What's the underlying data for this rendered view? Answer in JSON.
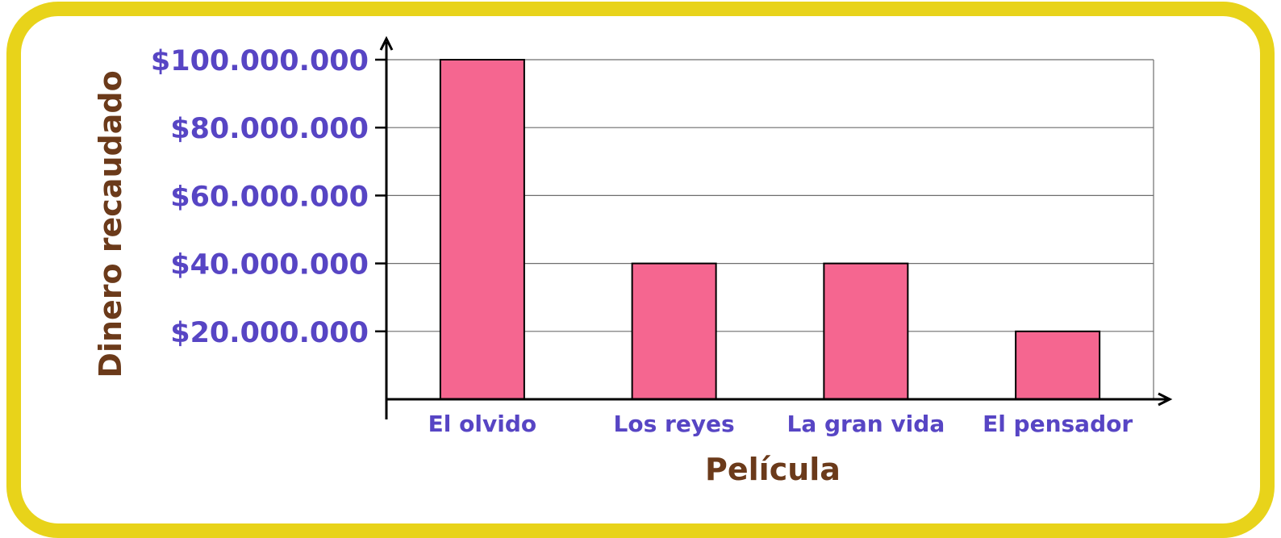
{
  "chart_data": {
    "type": "bar",
    "categories": [
      "El olvido",
      "Los reyes",
      "La gran vida",
      "El pensador"
    ],
    "values": [
      100000000,
      40000000,
      40000000,
      20000000
    ],
    "ylim": [
      0,
      100000000
    ],
    "yticks": [
      20000000,
      40000000,
      60000000,
      80000000,
      100000000
    ],
    "ytick_labels": [
      "$20.000.000",
      "$40.000.000",
      "$60.000.000",
      "$80.000.000",
      "$100.000.000"
    ],
    "xlabel": "Película",
    "ylabel": "Dinero recaudado",
    "grid": true,
    "colors": {
      "bar": "#f56690",
      "tick_text": "#5745c4",
      "axis_title": "#6b3a1a",
      "frame": "#e8d31a"
    }
  }
}
